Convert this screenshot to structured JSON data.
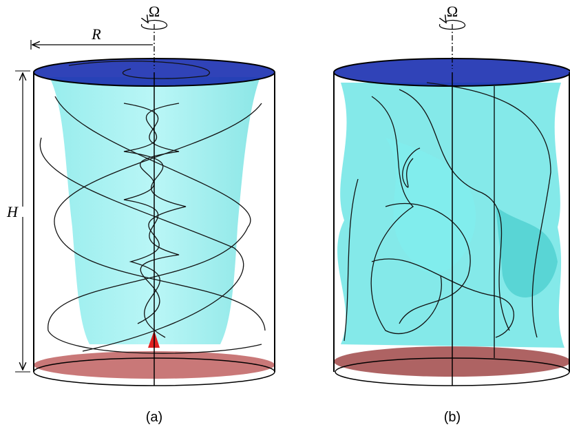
{
  "panels": [
    {
      "label": "(a)",
      "rotation_symbol": "Ω",
      "radius_label": "R",
      "height_label": "H"
    },
    {
      "label": "(b)",
      "rotation_symbol": "Ω"
    }
  ]
}
